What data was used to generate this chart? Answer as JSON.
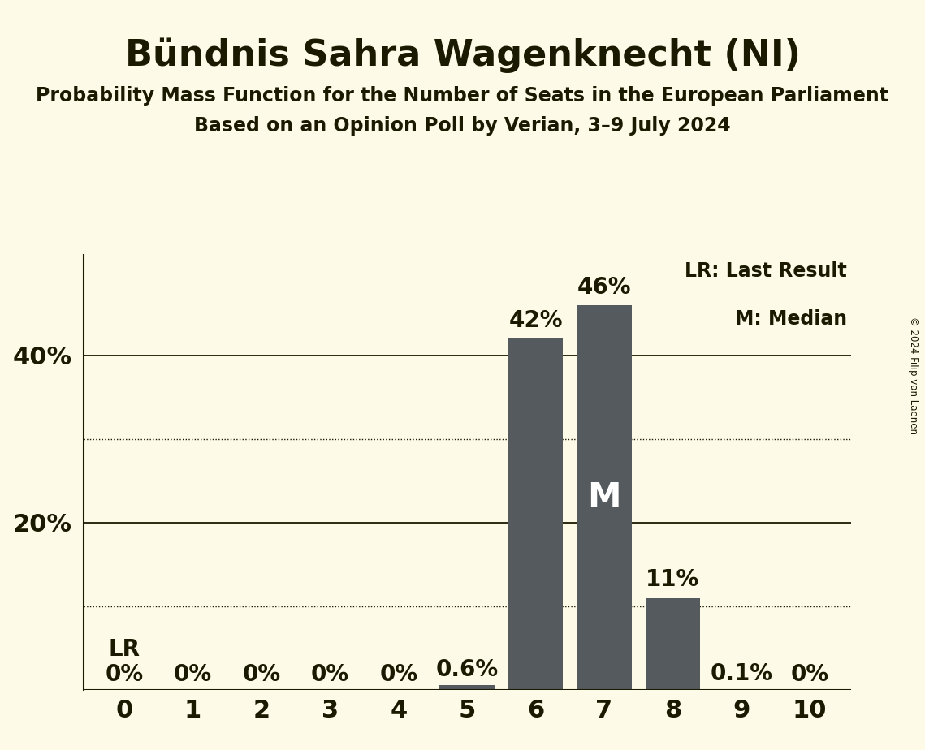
{
  "title": "Bündnis Sahra Wagenknecht (NI)",
  "subtitle1": "Probability Mass Function for the Number of Seats in the European Parliament",
  "subtitle2": "Based on an Opinion Poll by Verian, 3–9 July 2024",
  "copyright": "© 2024 Filip van Laenen",
  "x_labels": [
    0,
    1,
    2,
    3,
    4,
    5,
    6,
    7,
    8,
    9,
    10
  ],
  "probabilities": [
    0.0,
    0.0,
    0.0,
    0.0,
    0.0,
    0.6,
    42.0,
    46.0,
    11.0,
    0.1,
    0.0
  ],
  "bar_labels": [
    "0%",
    "0%",
    "0%",
    "0%",
    "0%",
    "0.6%",
    "42%",
    "46%",
    "11%",
    "0.1%",
    "0%"
  ],
  "median_bar": 7,
  "lr_bar": 0,
  "bar_color": "#555a5e",
  "background_color": "#fdfae8",
  "text_color": "#1a1a00",
  "legend_text1": "LR: Last Result",
  "legend_text2": "M: Median",
  "lr_label": "LR",
  "median_label": "M",
  "ylim_max": 52,
  "dotted_grid_lines": [
    10,
    30
  ],
  "solid_grid_lines": [
    20,
    40
  ],
  "title_fontsize": 32,
  "subtitle1_fontsize": 17,
  "subtitle2_fontsize": 17,
  "axis_fontsize": 22,
  "bar_label_fontsize": 20,
  "legend_fontsize": 17
}
